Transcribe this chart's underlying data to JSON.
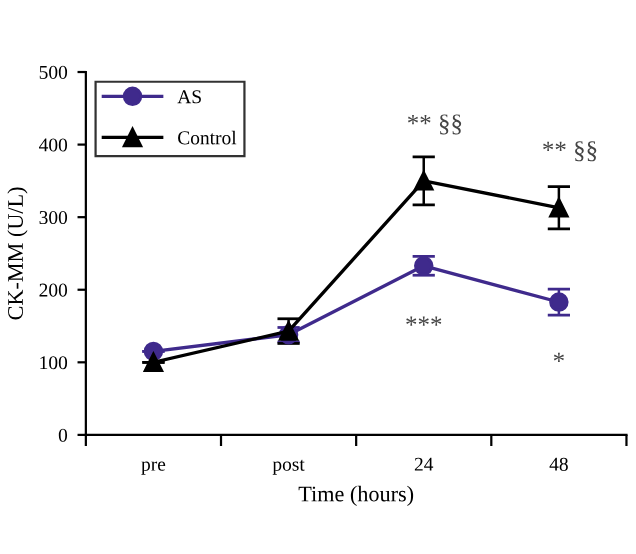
{
  "chart_data": {
    "type": "line",
    "xlabel": "Time (hours)",
    "ylabel": "CK-MM (U/L)",
    "categories": [
      "pre",
      "post",
      "24",
      "48"
    ],
    "series": [
      {
        "name": "AS",
        "color": "#3f2a8c",
        "marker": "circle",
        "values": [
          115,
          138,
          233,
          183
        ],
        "errors": [
          null,
          10,
          13,
          18
        ]
      },
      {
        "name": "Control",
        "color": "#000000",
        "marker": "triangle",
        "values": [
          100,
          143,
          350,
          313
        ],
        "errors": [
          null,
          17,
          33,
          29
        ]
      }
    ],
    "ylim": [
      0,
      500
    ],
    "yticks": [
      0,
      100,
      200,
      300,
      400,
      500
    ],
    "annotations": [
      {
        "text": "** §§",
        "x": "24",
        "y": 350
      },
      {
        "text": "** §§",
        "x": "48",
        "y": 313
      },
      {
        "text": "***",
        "x": "24",
        "y": 233
      },
      {
        "text": "*",
        "x": "48",
        "y": 183
      }
    ],
    "legend": "top left",
    "grid": false
  }
}
